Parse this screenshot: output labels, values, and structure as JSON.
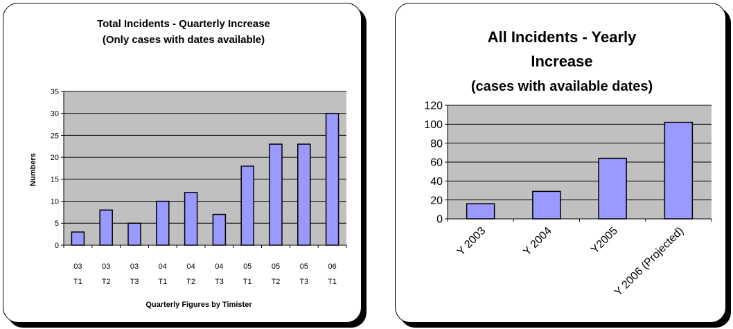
{
  "colors": {
    "plot_bg": "#c0c0c0",
    "bar_fill": "#9999ff",
    "bar_stroke": "#000000",
    "panel_border": "#000000"
  },
  "chart_data": [
    {
      "type": "bar",
      "title": [
        "Total Incidents - Quarterly Increase",
        "(Only cases with dates available)"
      ],
      "xlabel": "Quarterly Figures by Timister",
      "ylabel": "Numbers",
      "categories": [
        [
          "03",
          "T1"
        ],
        [
          "03",
          "T2"
        ],
        [
          "03",
          "T3"
        ],
        [
          "04",
          "T1"
        ],
        [
          "04",
          "T2"
        ],
        [
          "04",
          "T3"
        ],
        [
          "05",
          "T1"
        ],
        [
          "05",
          "T2"
        ],
        [
          "05",
          "T3"
        ],
        [
          "06",
          "T1"
        ]
      ],
      "values": [
        3,
        8,
        5,
        10,
        12,
        7,
        18,
        23,
        23,
        30
      ],
      "ylim": [
        0,
        35
      ],
      "yticks": [
        "0",
        "5",
        "10",
        "15",
        "20",
        "25",
        "30",
        "35"
      ],
      "grid": true,
      "legend": "none"
    },
    {
      "type": "bar",
      "title": [
        "All Incidents - Yearly",
        "Increase",
        "(cases with available dates)"
      ],
      "xlabel": "",
      "ylabel": "",
      "categories": [
        "Y 2003",
        "Y 2004",
        "Y2005",
        "Y 2006 (Projected)"
      ],
      "values": [
        16,
        29,
        64,
        102
      ],
      "ylim": [
        0,
        120
      ],
      "yticks": [
        "0",
        "20",
        "40",
        "60",
        "80",
        "100",
        "120"
      ],
      "grid": true,
      "legend": "none"
    }
  ]
}
